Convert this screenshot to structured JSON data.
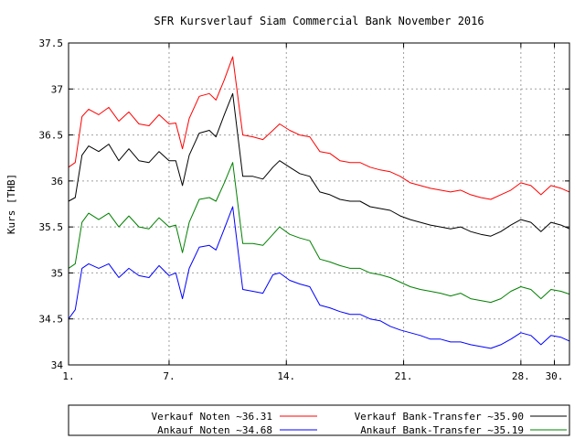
{
  "chart_data": {
    "type": "line",
    "title": "SFR Kursverlauf Siam Commercial Bank November 2016",
    "xlabel": "",
    "ylabel": "Kurs [THB]",
    "xlim": [
      1,
      30.9
    ],
    "ylim": [
      34,
      37.5
    ],
    "x_ticks": [
      {
        "value": 1,
        "label": "1."
      },
      {
        "value": 7,
        "label": "7."
      },
      {
        "value": 14,
        "label": "14."
      },
      {
        "value": 21,
        "label": "21."
      },
      {
        "value": 28,
        "label": "28."
      },
      {
        "value": 30,
        "label": "30."
      }
    ],
    "y_ticks": [
      {
        "value": 34,
        "label": "34"
      },
      {
        "value": 34.5,
        "label": "34.5"
      },
      {
        "value": 35,
        "label": "35"
      },
      {
        "value": 35.5,
        "label": "35.5"
      },
      {
        "value": 36,
        "label": "36"
      },
      {
        "value": 36.5,
        "label": "36.5"
      },
      {
        "value": 37,
        "label": "37"
      },
      {
        "value": 37.5,
        "label": "37.5"
      }
    ],
    "grid": true,
    "legend_position": "bottom",
    "series": [
      {
        "name": "Verkauf Noten ~36.31",
        "color": "#ff0000",
        "x": [
          1,
          1.4,
          1.8,
          2.2,
          2.8,
          3.4,
          4.0,
          4.6,
          5.2,
          5.8,
          6.4,
          7.0,
          7.4,
          7.8,
          8.2,
          8.8,
          9.4,
          9.8,
          10.3,
          10.8,
          11.4,
          12.0,
          12.6,
          13.2,
          13.6,
          14.2,
          14.8,
          15.4,
          16.0,
          16.6,
          17.2,
          17.8,
          18.4,
          19.0,
          19.6,
          20.2,
          20.8,
          21.4,
          22.0,
          22.6,
          23.2,
          23.8,
          24.4,
          25.0,
          25.6,
          26.2,
          26.8,
          27.4,
          28.0,
          28.6,
          29.2,
          29.8,
          30.4,
          30.9
        ],
        "values": [
          36.15,
          36.2,
          36.7,
          36.78,
          36.72,
          36.8,
          36.65,
          36.75,
          36.62,
          36.6,
          36.72,
          36.62,
          36.63,
          36.35,
          36.68,
          36.92,
          36.95,
          36.88,
          37.1,
          37.35,
          36.5,
          36.48,
          36.45,
          36.55,
          36.62,
          36.55,
          36.5,
          36.48,
          36.32,
          36.3,
          36.22,
          36.2,
          36.2,
          36.15,
          36.12,
          36.1,
          36.05,
          35.98,
          35.95,
          35.92,
          35.9,
          35.88,
          35.9,
          35.85,
          35.82,
          35.8,
          35.85,
          35.9,
          35.98,
          35.95,
          35.85,
          35.95,
          35.92,
          35.88
        ]
      },
      {
        "name": "Ankauf Noten ~34.68",
        "color": "#0000ff",
        "x": [
          1,
          1.4,
          1.8,
          2.2,
          2.8,
          3.4,
          4.0,
          4.6,
          5.2,
          5.8,
          6.4,
          7.0,
          7.4,
          7.8,
          8.2,
          8.8,
          9.4,
          9.8,
          10.3,
          10.8,
          11.4,
          12.0,
          12.6,
          13.2,
          13.6,
          14.2,
          14.8,
          15.4,
          16.0,
          16.6,
          17.2,
          17.8,
          18.4,
          19.0,
          19.6,
          20.2,
          20.8,
          21.4,
          22.0,
          22.6,
          23.2,
          23.8,
          24.4,
          25.0,
          25.6,
          26.2,
          26.8,
          27.4,
          28.0,
          28.6,
          29.2,
          29.8,
          30.4,
          30.9
        ],
        "values": [
          34.5,
          34.6,
          35.05,
          35.1,
          35.05,
          35.1,
          34.95,
          35.05,
          34.97,
          34.95,
          35.08,
          34.97,
          35.0,
          34.72,
          35.05,
          35.28,
          35.3,
          35.25,
          35.48,
          35.72,
          34.82,
          34.8,
          34.78,
          34.98,
          35.0,
          34.92,
          34.88,
          34.85,
          34.65,
          34.62,
          34.58,
          34.55,
          34.55,
          34.5,
          34.48,
          34.42,
          34.38,
          34.35,
          34.32,
          34.28,
          34.28,
          34.25,
          34.25,
          34.22,
          34.2,
          34.18,
          34.22,
          34.28,
          34.35,
          34.32,
          34.22,
          34.32,
          34.3,
          34.26
        ]
      },
      {
        "name": "Verkauf Bank-Transfer ~35.90",
        "color": "#000000",
        "x": [
          1,
          1.4,
          1.8,
          2.2,
          2.8,
          3.4,
          4.0,
          4.6,
          5.2,
          5.8,
          6.4,
          7.0,
          7.4,
          7.8,
          8.2,
          8.8,
          9.4,
          9.8,
          10.3,
          10.8,
          11.4,
          12.0,
          12.6,
          13.2,
          13.6,
          14.2,
          14.8,
          15.4,
          16.0,
          16.6,
          17.2,
          17.8,
          18.4,
          19.0,
          19.6,
          20.2,
          20.8,
          21.4,
          22.0,
          22.6,
          23.2,
          23.8,
          24.4,
          25.0,
          25.6,
          26.2,
          26.8,
          27.4,
          28.0,
          28.6,
          29.2,
          29.8,
          30.4,
          30.9
        ],
        "values": [
          35.78,
          35.82,
          36.28,
          36.38,
          36.32,
          36.4,
          36.22,
          36.35,
          36.22,
          36.2,
          36.32,
          36.22,
          36.22,
          35.95,
          36.28,
          36.52,
          36.55,
          36.48,
          36.72,
          36.95,
          36.05,
          36.05,
          36.02,
          36.15,
          36.22,
          36.15,
          36.08,
          36.05,
          35.88,
          35.85,
          35.8,
          35.78,
          35.78,
          35.72,
          35.7,
          35.68,
          35.62,
          35.58,
          35.55,
          35.52,
          35.5,
          35.48,
          35.5,
          35.45,
          35.42,
          35.4,
          35.45,
          35.52,
          35.58,
          35.55,
          35.45,
          35.55,
          35.52,
          35.48
        ]
      },
      {
        "name": "Ankauf Bank-Transfer ~35.19",
        "color": "#008000",
        "x": [
          1,
          1.4,
          1.8,
          2.2,
          2.8,
          3.4,
          4.0,
          4.6,
          5.2,
          5.8,
          6.4,
          7.0,
          7.4,
          7.8,
          8.2,
          8.8,
          9.4,
          9.8,
          10.3,
          10.8,
          11.4,
          12.0,
          12.6,
          13.2,
          13.6,
          14.2,
          14.8,
          15.4,
          16.0,
          16.6,
          17.2,
          17.8,
          18.4,
          19.0,
          19.6,
          20.2,
          20.8,
          21.4,
          22.0,
          22.6,
          23.2,
          23.8,
          24.4,
          25.0,
          25.6,
          26.2,
          26.8,
          27.4,
          28.0,
          28.6,
          29.2,
          29.8,
          30.4,
          30.9
        ],
        "values": [
          35.05,
          35.1,
          35.55,
          35.65,
          35.58,
          35.65,
          35.5,
          35.62,
          35.5,
          35.48,
          35.6,
          35.5,
          35.52,
          35.22,
          35.55,
          35.8,
          35.82,
          35.78,
          35.98,
          36.2,
          35.32,
          35.32,
          35.3,
          35.42,
          35.5,
          35.42,
          35.38,
          35.35,
          35.15,
          35.12,
          35.08,
          35.05,
          35.05,
          35.0,
          34.98,
          34.95,
          34.9,
          34.85,
          34.82,
          34.8,
          34.78,
          34.75,
          34.78,
          34.72,
          34.7,
          34.68,
          34.72,
          34.8,
          34.85,
          34.82,
          34.72,
          34.82,
          34.8,
          34.77
        ]
      }
    ]
  }
}
